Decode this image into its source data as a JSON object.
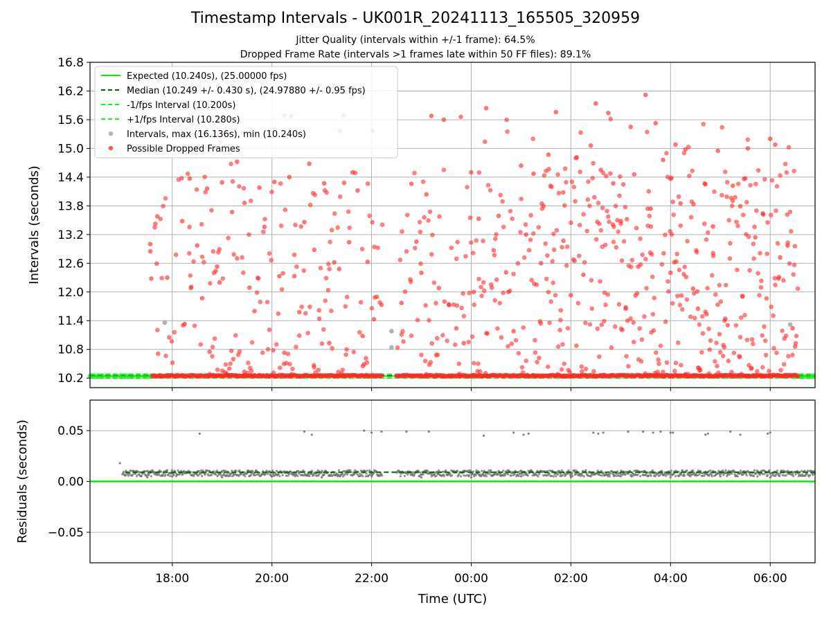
{
  "figure": {
    "title": "Timestamp Intervals - UK001R_20241113_165505_320959",
    "subtitle1": "Jitter Quality (intervals within +/-1 frame): 64.5%",
    "subtitle2": "Dropped Frame Rate (intervals >1 frames late within 50 FF files): 89.1%"
  },
  "colors": {
    "expected": "#00ee00",
    "median": "#006400",
    "bound": "#22ee22",
    "normal": "#9e9e9e",
    "dropped": "#ff2a2a",
    "residual": "#6e6e6e"
  },
  "chart_data": [
    {
      "type": "scatter",
      "ylabel": "Intervals (seconds)",
      "xlabel": "",
      "ylim": [
        10.0,
        16.8
      ],
      "yticks": [
        10.2,
        10.8,
        11.4,
        12.0,
        12.6,
        13.2,
        13.8,
        14.4,
        15.0,
        15.6,
        16.2,
        16.8
      ],
      "ytick_labels": [
        "10.2",
        "10.8",
        "11.4",
        "12.0",
        "12.6",
        "13.2",
        "13.8",
        "14.4",
        "15.0",
        "15.6",
        "16.2",
        "16.8"
      ],
      "x_range_hours": [
        16.35,
        30.9
      ],
      "grid": true,
      "legend_position": "upper left",
      "legend": [
        "Expected (10.240s), (25.00000 fps)",
        "Median (10.249 +/- 0.430 s), (24.97880 +/- 0.95 fps)",
        "-1/fps Interval (10.200s)",
        "+1/fps Interval (10.280s)",
        "Intervals, max (16.136s), min (10.240s)",
        "Possible Dropped Frames"
      ],
      "series": [
        {
          "name": "Expected (10.240s), (25.00000 fps)",
          "kind": "hline",
          "y": 10.24
        },
        {
          "name": "Median (10.249 +/- 0.430 s), (24.97880 +/- 0.95 fps)",
          "kind": "hline",
          "y": 10.249
        },
        {
          "name": "-1/fps Interval (10.200s)",
          "kind": "hline",
          "y": 10.2
        },
        {
          "name": "+1/fps Interval (10.280s)",
          "kind": "hline",
          "y": 10.28
        },
        {
          "name": "Intervals, max (16.136s), min (10.240s)",
          "kind": "scatter",
          "points": [
            [
              16.5,
              10.24
            ],
            [
              16.9,
              10.24
            ],
            [
              17.2,
              10.24
            ],
            [
              17.5,
              10.24
            ],
            [
              17.85,
              11.36
            ],
            [
              22.4,
              11.18
            ],
            [
              22.4,
              10.84
            ],
            [
              22.35,
              10.24
            ],
            [
              30.4,
              11.32
            ],
            [
              30.7,
              10.24
            ],
            [
              16.7,
              10.24
            ],
            [
              17.05,
              10.24
            ],
            [
              17.35,
              10.24
            ]
          ]
        },
        {
          "name": "Possible Dropped Frames",
          "kind": "scatter",
          "baseline": {
            "y": 10.249,
            "segments": [
              [
                17.6,
                22.2
              ],
              [
                22.5,
                30.55
              ]
            ]
          },
          "points": [
            [
              17.56,
              13.0
            ],
            [
              17.56,
              12.85
            ],
            [
              17.58,
              12.28
            ],
            [
              17.7,
              13.58
            ],
            [
              17.9,
              12.3
            ],
            [
              18.2,
              13.48
            ],
            [
              18.25,
              11.33
            ],
            [
              18.35,
              14.37
            ],
            [
              18.5,
              12.97
            ],
            [
              18.6,
              11.87
            ],
            [
              18.7,
              14.16
            ],
            [
              18.75,
              10.75
            ],
            [
              18.9,
              12.53
            ],
            [
              18.95,
              12.2
            ],
            [
              19.0,
              14.29
            ],
            [
              19.2,
              13.67
            ],
            [
              19.3,
              14.72
            ],
            [
              19.4,
              15.33
            ],
            [
              19.45,
              13.86
            ],
            [
              19.55,
              12.09
            ],
            [
              19.65,
              11.6
            ],
            [
              19.75,
              14.18
            ],
            [
              19.85,
              13.36
            ],
            [
              19.95,
              11.21
            ],
            [
              20.05,
              14.3
            ],
            [
              20.15,
              12.33
            ],
            [
              20.25,
              10.73
            ],
            [
              20.35,
              14.4
            ],
            [
              20.45,
              12.33
            ],
            [
              20.55,
              11.58
            ],
            [
              20.65,
              13.46
            ],
            [
              20.75,
              14.68
            ],
            [
              20.85,
              12.88
            ],
            [
              20.95,
              11.44
            ],
            [
              21.05,
              14.27
            ],
            [
              21.15,
              10.93
            ],
            [
              21.25,
              12.62
            ],
            [
              21.35,
              12.48
            ],
            [
              21.45,
              14.28
            ],
            [
              21.55,
              13.04
            ],
            [
              21.62,
              14.5
            ],
            [
              21.72,
              14.12
            ],
            [
              21.82,
              11.08
            ],
            [
              21.92,
              12.63
            ],
            [
              22.05,
              11.43
            ],
            [
              22.2,
              11.73
            ],
            [
              22.6,
              11.77
            ],
            [
              22.8,
              14.26
            ],
            [
              22.9,
              13.05
            ],
            [
              23.0,
              12.4
            ],
            [
              23.1,
              14.04
            ],
            [
              23.2,
              15.68
            ],
            [
              23.35,
              12.08
            ],
            [
              23.45,
              15.6
            ],
            [
              23.55,
              11.74
            ],
            [
              23.7,
              11.24
            ],
            [
              23.85,
              10.93
            ],
            [
              24.0,
              14.5
            ],
            [
              24.05,
              12.0
            ],
            [
              24.15,
              13.53
            ],
            [
              24.3,
              15.84
            ],
            [
              24.45,
              12.87
            ],
            [
              24.55,
              13.59
            ],
            [
              24.7,
              12.41
            ],
            [
              24.85,
              11.18
            ],
            [
              25.0,
              14.64
            ],
            [
              25.1,
              13.2
            ],
            [
              25.25,
              14.47
            ],
            [
              25.4,
              12.6
            ],
            [
              25.55,
              14.87
            ],
            [
              25.7,
              15.76
            ],
            [
              25.85,
              13.07
            ],
            [
              26.0,
              11.93
            ],
            [
              26.1,
              14.8
            ],
            [
              26.25,
              12.36
            ],
            [
              26.4,
              15.06
            ],
            [
              26.5,
              15.94
            ],
            [
              26.6,
              14.55
            ],
            [
              26.75,
              15.74
            ],
            [
              26.85,
              14.27
            ],
            [
              27.0,
              13.48
            ],
            [
              27.1,
              11.65
            ],
            [
              27.2,
              15.45
            ],
            [
              27.35,
              12.53
            ],
            [
              27.5,
              16.12
            ],
            [
              27.6,
              13.74
            ],
            [
              27.7,
              15.53
            ],
            [
              27.85,
              14.76
            ],
            [
              28.0,
              12.4
            ],
            [
              28.1,
              15.08
            ],
            [
              28.2,
              13.85
            ],
            [
              28.3,
              14.98
            ],
            [
              28.45,
              12.07
            ],
            [
              28.55,
              11.65
            ],
            [
              28.7,
              14.25
            ],
            [
              28.85,
              13.37
            ],
            [
              28.95,
              14.95
            ],
            [
              29.1,
              11.44
            ],
            [
              29.25,
              14.22
            ],
            [
              29.4,
              13.79
            ],
            [
              29.55,
              15.0
            ],
            [
              29.7,
              13.14
            ],
            [
              29.85,
              13.64
            ],
            [
              30.0,
              15.2
            ],
            [
              30.1,
              15.08
            ],
            [
              30.2,
              12.72
            ],
            [
              30.35,
              12.97
            ],
            [
              30.45,
              11.24
            ],
            [
              30.5,
              10.86
            ]
          ]
        }
      ]
    },
    {
      "type": "scatter",
      "ylabel": "Residuals (seconds)",
      "xlabel": "Time (UTC)",
      "ylim": [
        -0.08,
        0.08
      ],
      "yticks": [
        -0.05,
        0.0,
        0.05
      ],
      "ytick_labels": [
        "−0.05",
        "0.00",
        "0.05"
      ],
      "x_range_hours": [
        16.35,
        30.9
      ],
      "xticks": [
        18,
        20,
        22,
        24,
        26,
        28,
        30
      ],
      "xtick_labels": [
        "18:00",
        "20:00",
        "22:00",
        "00:00",
        "02:00",
        "04:00",
        "06:00"
      ],
      "grid": true,
      "series": [
        {
          "name": "Expected (10.240s), (25.00000 fps)",
          "kind": "hline",
          "y": 0.0
        },
        {
          "name": "Median (10.249 +/- 0.430 s), (24.97880 +/- 0.95 fps)",
          "kind": "hline",
          "y": 0.009
        },
        {
          "name": "Residuals",
          "kind": "scatter",
          "band": {
            "center": 0.008,
            "spread": 0.003,
            "range": [
              17.0,
              30.9
            ]
          },
          "points": [
            [
              16.95,
              0.018
            ],
            [
              18.55,
              0.047
            ],
            [
              20.65,
              0.049
            ],
            [
              20.8,
              0.046
            ],
            [
              21.85,
              0.05
            ],
            [
              22.0,
              0.048
            ],
            [
              22.2,
              0.049
            ],
            [
              22.7,
              0.049
            ],
            [
              23.15,
              0.049
            ],
            [
              24.25,
              0.045
            ],
            [
              24.85,
              0.048
            ],
            [
              25.05,
              0.046
            ],
            [
              25.15,
              0.047
            ],
            [
              26.45,
              0.048
            ],
            [
              26.55,
              0.047
            ],
            [
              26.65,
              0.048
            ],
            [
              27.15,
              0.049
            ],
            [
              27.45,
              0.049
            ],
            [
              27.65,
              0.048
            ],
            [
              27.8,
              0.049
            ],
            [
              28.0,
              0.048
            ],
            [
              28.05,
              0.048
            ],
            [
              28.7,
              0.046
            ],
            [
              28.75,
              0.047
            ],
            [
              29.2,
              0.049
            ],
            [
              29.4,
              0.046
            ],
            [
              29.95,
              0.047
            ],
            [
              30.0,
              0.048
            ],
            [
              17.5,
              0.004
            ],
            [
              18.0,
              0.005
            ],
            [
              19.0,
              0.004
            ],
            [
              20.0,
              0.005
            ],
            [
              21.0,
              0.004
            ],
            [
              22.0,
              0.005
            ],
            [
              23.0,
              0.004
            ],
            [
              24.0,
              0.004
            ],
            [
              25.0,
              0.005
            ],
            [
              26.0,
              0.004
            ],
            [
              27.0,
              0.005
            ],
            [
              28.0,
              0.004
            ],
            [
              29.0,
              0.005
            ],
            [
              30.0,
              0.004
            ]
          ]
        }
      ]
    }
  ]
}
